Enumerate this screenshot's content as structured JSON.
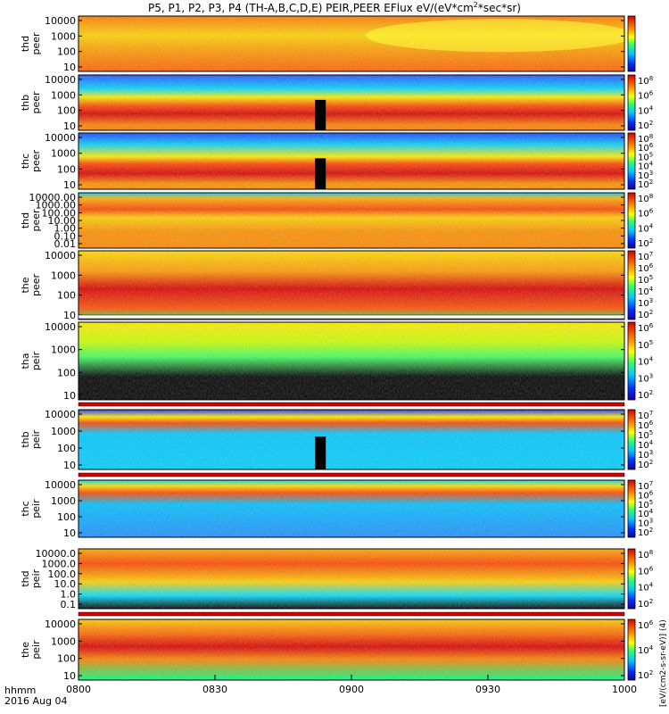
{
  "title": "P5, P1, P2, P3, P4 (TH-A,B,C,D,E) PEIR,PEER EFlux eV/(eV*cm",
  "title_sup": "2",
  "title_end": "*sec*sr)",
  "colorbar_unit_label": "[eV/(cm2-s-sr-eV)] (4)",
  "time_axis": {
    "label_line1": "hhmm",
    "label_line2": "2016 Aug 04",
    "ticks": [
      "0800",
      "0830",
      "0900",
      "0930",
      "1000"
    ],
    "range_minutes": [
      0,
      120
    ]
  },
  "chart_data": [
    {
      "type": "heatmap",
      "ylabel": [
        "thd",
        "peer"
      ],
      "yticks": [
        "10000",
        "1000",
        "100",
        "10"
      ],
      "colorbar_ticks": []
    },
    {
      "type": "heatmap",
      "ylabel": [
        "thb",
        "peer"
      ],
      "yticks": [
        "10000",
        "1000",
        "100",
        "10"
      ],
      "colorbar_ticks": [
        "10^8",
        "10^6",
        "10^4",
        "10^2"
      ]
    },
    {
      "type": "heatmap",
      "ylabel": [
        "thc",
        "peer"
      ],
      "yticks": [
        "10000",
        "1000",
        "100",
        "10"
      ],
      "colorbar_ticks": [
        "10^8",
        "10^6",
        "10^5",
        "10^4",
        "10^3",
        "10^2"
      ]
    },
    {
      "type": "heatmap",
      "ylabel": [
        "thd",
        "peer"
      ],
      "yticks": [
        "10000.00",
        "1000.00",
        "100.00",
        "10.00",
        "1.00",
        "0.10",
        "0.01"
      ],
      "colorbar_ticks": [
        "10^8",
        "10^6",
        "10^4",
        "10^2"
      ]
    },
    {
      "type": "heatmap",
      "ylabel": [
        "the",
        "peer"
      ],
      "yticks": [
        "10000",
        "1000",
        "100",
        "10"
      ],
      "colorbar_ticks": [
        "10^7",
        "10^6",
        "10^5",
        "10^4",
        "10^3",
        "10^2"
      ]
    },
    {
      "type": "heatmap",
      "ylabel": [
        "tha",
        "peir"
      ],
      "yticks": [
        "10000",
        "1000",
        "100",
        "10"
      ],
      "colorbar_ticks": [
        "10^6",
        "10^5",
        "10^4",
        "10^3",
        "10^2"
      ]
    },
    {
      "type": "heatmap",
      "ylabel": [
        "thb",
        "peir"
      ],
      "yticks": [
        "10000",
        "1000",
        "100",
        "10"
      ],
      "colorbar_ticks": [
        "10^7",
        "10^6",
        "10^5",
        "10^4",
        "10^3",
        "10^2"
      ]
    },
    {
      "type": "heatmap",
      "ylabel": [
        "thc",
        "peir"
      ],
      "yticks": [
        "10000",
        "1000",
        "100",
        "10"
      ],
      "colorbar_ticks": [
        "10^7",
        "10^6",
        "10^5",
        "10^4",
        "10^3",
        "10^2"
      ]
    },
    {
      "type": "heatmap",
      "ylabel": [
        "thd",
        "peir"
      ],
      "yticks": [
        "10000.0",
        "1000.0",
        "100.0",
        "10.0",
        "1.0",
        "0.1"
      ],
      "colorbar_ticks": [
        "10^8",
        "10^6",
        "10^4",
        "10^2"
      ]
    },
    {
      "type": "heatmap",
      "ylabel": [
        "the",
        "peir"
      ],
      "yticks": [
        "10000",
        "1000",
        "100",
        "10"
      ],
      "colorbar_ticks": [
        "10^6",
        "10^4",
        "10^2"
      ]
    }
  ]
}
